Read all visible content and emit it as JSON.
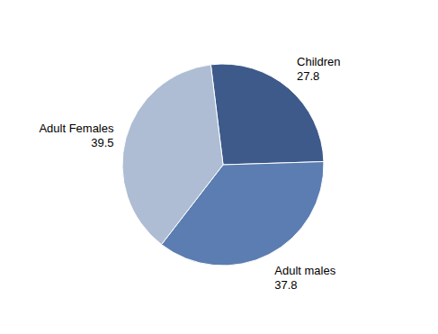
{
  "chart_data": {
    "type": "pie",
    "categories": [
      "Children",
      "Adult males",
      "Adult Females"
    ],
    "values": [
      27.8,
      37.8,
      39.5
    ],
    "colors": [
      "#3D5A8A",
      "#5B7DB1",
      "#AEBDD4"
    ],
    "data_labels": true
  }
}
